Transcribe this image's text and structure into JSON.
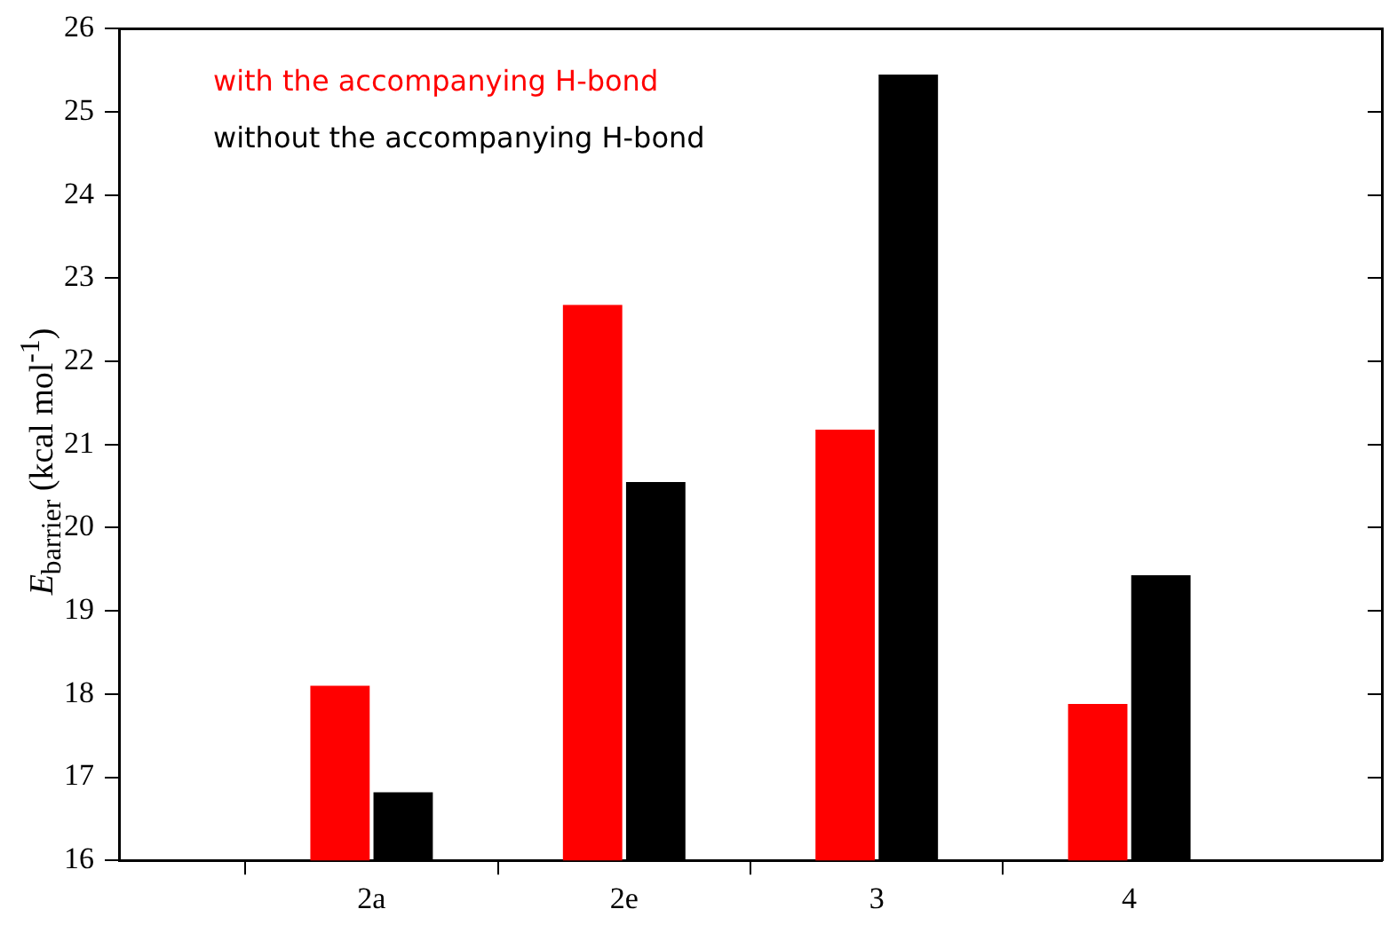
{
  "chart_data": {
    "type": "bar",
    "ylabel": "E$_{barrier}$ (kcal mol$^{-1}$)",
    "categories": [
      "2a",
      "2e",
      "3",
      "4"
    ],
    "series": [
      {
        "name": "with the accompanying H-bond",
        "color": "#ff0000",
        "values": [
          18.1,
          22.68,
          21.18,
          17.88
        ]
      },
      {
        "name": "without the accompanying H-bond",
        "color": "#000000",
        "values": [
          16.82,
          20.55,
          25.45,
          19.43
        ]
      }
    ],
    "ylim": [
      16,
      26
    ],
    "yticks": [
      16,
      17,
      18,
      19,
      20,
      21,
      22,
      23,
      24,
      25,
      26
    ],
    "grid": false,
    "legend": "top left"
  }
}
